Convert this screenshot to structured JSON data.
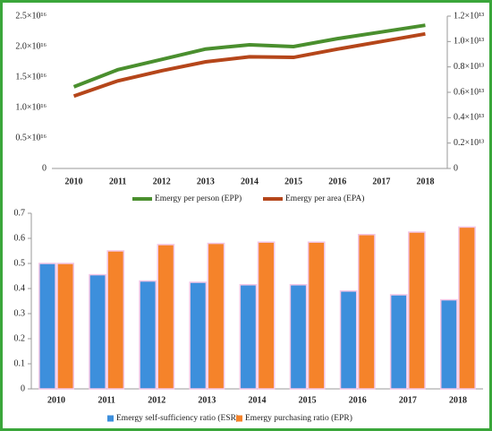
{
  "chart_data": [
    {
      "type": "line",
      "categories": [
        "2010",
        "2011",
        "2012",
        "2013",
        "2014",
        "2015",
        "2016",
        "2017",
        "2018"
      ],
      "series": [
        {
          "name": "Emergy per person (EPP)",
          "color": "#4a8f2e",
          "values": [
            1.34e+16,
            1.62e+16,
            1.79e+16,
            1.96e+16,
            2.03e+16,
            2e+16,
            2.13e+16,
            2.24e+16,
            2.35e+16
          ]
        },
        {
          "name": "Emergy per area (EPA)",
          "color": "#b5461a",
          "axis": "y2",
          "values": [
            5700000000000.0,
            6900000000000.0,
            7700000000000.0,
            8400000000000.0,
            8800000000000.0,
            8750000000000.0,
            9400000000000.0,
            10000000000000.0,
            10600000000000.0
          ]
        }
      ],
      "ylim": [
        0,
        2.5e+16
      ],
      "yticks": [
        0,
        {
          "value": 5000000000000000.0,
          "label": "0.5×10¹⁶"
        },
        {
          "value": 1e+16,
          "label": "1.0×10¹⁶"
        },
        {
          "value": 1.5e+16,
          "label": "1.5×10¹⁶"
        },
        {
          "value": 2e+16,
          "label": "2.0×10¹⁶"
        },
        {
          "value": 2.5e+16,
          "label": "2.5×10¹⁶"
        }
      ],
      "y2lim": [
        0,
        12000000000000.0
      ],
      "y2ticks": [
        0,
        {
          "value": 2000000000000.0,
          "label": "0.2×10¹³"
        },
        {
          "value": 4000000000000.0,
          "label": "0.4×10¹³"
        },
        {
          "value": 6000000000000.0,
          "label": "0.6×10¹³"
        },
        {
          "value": 8000000000000.0,
          "label": "0.8×10¹³"
        },
        {
          "value": 10000000000000.0,
          "label": "1.0×10¹³"
        },
        {
          "value": 12000000000000.0,
          "label": "1.2×10¹³"
        }
      ]
    },
    {
      "type": "bar",
      "categories": [
        "2010",
        "2011",
        "2012",
        "2013",
        "2014",
        "2015",
        "2016",
        "2017",
        "2018"
      ],
      "series": [
        {
          "name": "Emergy self-sufficiency ratio (ESR)",
          "color": "#3d8fdc",
          "values": [
            0.5,
            0.455,
            0.43,
            0.425,
            0.415,
            0.415,
            0.39,
            0.375,
            0.355
          ]
        },
        {
          "name": "Emergy purchasing ratio (EPR)",
          "color": "#f5832a",
          "values": [
            0.5,
            0.55,
            0.575,
            0.58,
            0.585,
            0.585,
            0.615,
            0.625,
            0.645
          ]
        }
      ],
      "ylim": [
        0,
        0.7
      ],
      "yticks": [
        0,
        0.1,
        0.2,
        0.3,
        0.4,
        0.5,
        0.6,
        0.7
      ]
    }
  ]
}
